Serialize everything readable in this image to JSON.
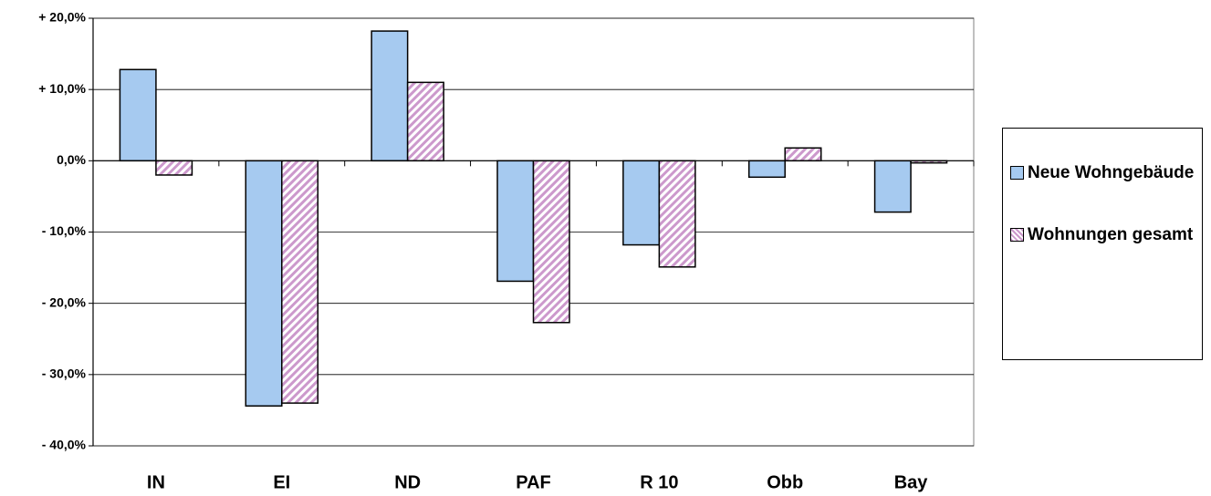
{
  "chart_data": {
    "type": "bar",
    "categories": [
      "IN",
      "EI",
      "ND",
      "PAF",
      "R 10",
      "Obb",
      "Bay"
    ],
    "series": [
      {
        "name": "Neue Wohngebäude",
        "color": "#a6caf0",
        "values": [
          12.8,
          -34.4,
          18.2,
          -16.9,
          -11.8,
          -2.3,
          -7.2
        ]
      },
      {
        "name": "Wohnungen gesamt",
        "color": "#cc99cc",
        "pattern": "hatch",
        "values": [
          -2.0,
          -34.0,
          11.0,
          -22.7,
          -14.9,
          1.8,
          -0.3
        ]
      }
    ],
    "ylim": [
      -40,
      20
    ],
    "yticks": [
      {
        "value": 20,
        "label": "+ 20,0%"
      },
      {
        "value": 10,
        "label": "+ 10,0%"
      },
      {
        "value": 0,
        "label": "0,0%"
      },
      {
        "value": -10,
        "label": "- 10,0%"
      },
      {
        "value": -20,
        "label": "- 20,0%"
      },
      {
        "value": -30,
        "label": "- 30,0%"
      },
      {
        "value": -40,
        "label": "- 40,0%"
      }
    ],
    "grid": true,
    "legend": "right"
  }
}
